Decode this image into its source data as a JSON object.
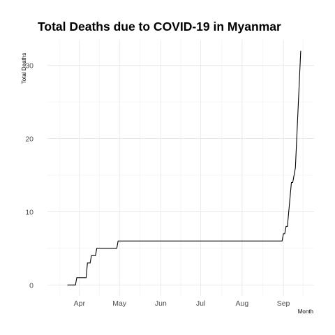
{
  "chart_data": {
    "type": "line",
    "title": "Total Deaths due to COVID-19 in Myanmar",
    "xlabel": "Month",
    "ylabel": "Total Deaths",
    "x_ticks": [
      {
        "label": "Apr",
        "date": "2020-04-01"
      },
      {
        "label": "May",
        "date": "2020-05-01"
      },
      {
        "label": "Jun",
        "date": "2020-06-01"
      },
      {
        "label": "Jul",
        "date": "2020-07-01"
      },
      {
        "label": "Aug",
        "date": "2020-08-01"
      },
      {
        "label": "Sep",
        "date": "2020-09-01"
      }
    ],
    "y_ticks": [
      0,
      10,
      20,
      30
    ],
    "xlim": [
      "2020-03-08",
      "2020-09-24"
    ],
    "ylim": [
      -1.5,
      33.5
    ],
    "grid": true,
    "legend": "none",
    "line_color": "#000000",
    "series": [
      {
        "x": [
          "2020-03-23",
          "2020-03-29",
          "2020-03-30",
          "2020-04-06",
          "2020-04-07",
          "2020-04-09",
          "2020-04-10",
          "2020-04-13",
          "2020-04-14",
          "2020-04-16",
          "2020-04-17",
          "2020-04-29",
          "2020-04-30",
          "2020-08-31",
          "2020-09-01",
          "2020-09-02",
          "2020-09-03",
          "2020-09-04",
          "2020-09-05",
          "2020-09-06",
          "2020-09-07",
          "2020-09-08",
          "2020-09-09",
          "2020-09-10",
          "2020-09-11",
          "2020-09-12",
          "2020-09-13",
          "2020-09-14"
        ],
        "y": [
          0,
          0,
          1,
          1,
          3,
          3,
          4,
          4,
          5,
          5,
          5,
          5,
          6,
          6,
          7,
          7,
          8,
          8,
          10,
          12,
          14,
          14,
          15,
          16,
          20,
          24,
          28,
          32
        ]
      }
    ]
  }
}
